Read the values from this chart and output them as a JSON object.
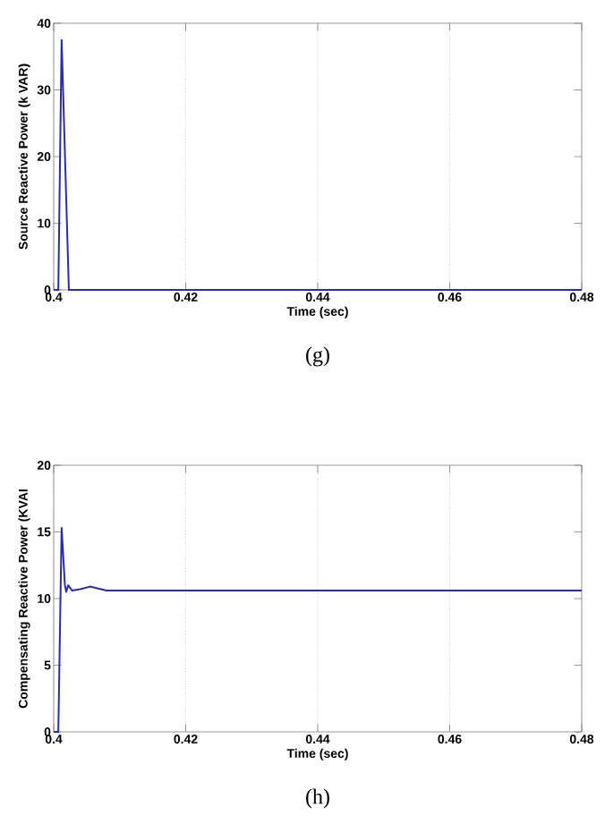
{
  "chart_data": [
    {
      "type": "line",
      "xlabel": "Time (sec)",
      "ylabel": "Source Reactive Power (k VAR)",
      "xlim": [
        0.4,
        0.48
      ],
      "ylim": [
        0,
        40
      ],
      "xticks": [
        0.4,
        0.42,
        0.44,
        0.46,
        0.48
      ],
      "yticks": [
        0,
        10,
        20,
        30,
        40
      ],
      "grid": "x",
      "annotations": [
        "(g)"
      ],
      "series": [
        {
          "color": "#2a2ab4",
          "x": [
            0.4,
            0.4007,
            0.4012,
            0.4023,
            0.403,
            0.42,
            0.44,
            0.46,
            0.48
          ],
          "values": [
            0,
            0,
            37.5,
            0,
            0,
            0,
            0,
            0,
            0
          ]
        }
      ]
    },
    {
      "type": "line",
      "xlabel": "Time (sec)",
      "ylabel": "Compensating Reactive Power (KVAI",
      "xlim": [
        0.4,
        0.48
      ],
      "ylim": [
        0,
        20
      ],
      "xticks": [
        0.4,
        0.42,
        0.44,
        0.46,
        0.48
      ],
      "yticks": [
        0,
        5,
        10,
        15,
        20
      ],
      "grid": "x",
      "annotations": [
        "(h)"
      ],
      "series": [
        {
          "color": "#2a2ab4",
          "x": [
            0.4,
            0.4007,
            0.4012,
            0.4017,
            0.4019,
            0.4022,
            0.4028,
            0.404,
            0.4055,
            0.408,
            0.412,
            0.42,
            0.43,
            0.44,
            0.45,
            0.46,
            0.47,
            0.48
          ],
          "values": [
            0,
            0,
            15.3,
            11.0,
            10.5,
            11.0,
            10.6,
            10.7,
            10.9,
            10.6,
            10.6,
            10.6,
            10.6,
            10.6,
            10.6,
            10.6,
            10.6,
            10.6
          ]
        }
      ]
    }
  ]
}
